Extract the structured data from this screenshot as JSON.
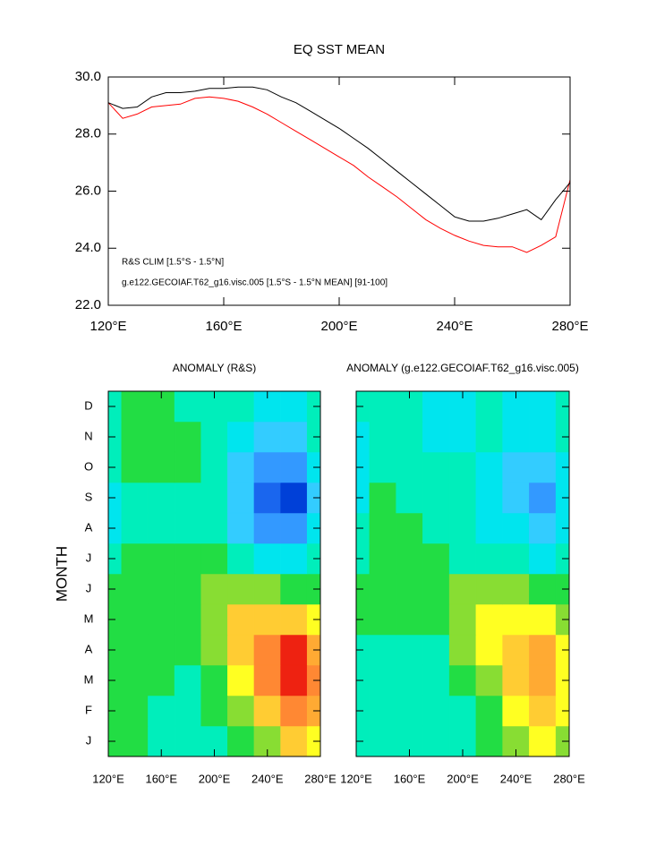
{
  "chart_data": [
    {
      "type": "line",
      "title": "EQ SST MEAN",
      "x": [
        120,
        125,
        130,
        135,
        140,
        145,
        150,
        155,
        160,
        165,
        170,
        175,
        180,
        185,
        190,
        195,
        200,
        205,
        210,
        215,
        220,
        225,
        230,
        235,
        240,
        245,
        250,
        255,
        260,
        265,
        270,
        275,
        280
      ],
      "series": [
        {
          "name": "R&S CLIM [1.5°S - 1.5°N]",
          "color": "#ff0000",
          "values": [
            29.1,
            28.55,
            28.7,
            28.95,
            29.0,
            29.05,
            29.25,
            29.3,
            29.25,
            29.15,
            28.95,
            28.7,
            28.4,
            28.1,
            27.8,
            27.5,
            27.2,
            26.9,
            26.5,
            26.15,
            25.8,
            25.4,
            25.0,
            24.7,
            24.45,
            24.25,
            24.1,
            24.05,
            24.05,
            23.85,
            24.1,
            24.4,
            26.4
          ]
        },
        {
          "name": "g.e122.GECOIAF.T62_g16.visc.005 [1.5°S - 1.5°N MEAN] [91-100]",
          "color": "#000000",
          "values": [
            29.1,
            28.9,
            28.95,
            29.3,
            29.45,
            29.45,
            29.5,
            29.6,
            29.6,
            29.65,
            29.65,
            29.55,
            29.3,
            29.1,
            28.8,
            28.5,
            28.2,
            27.85,
            27.5,
            27.1,
            26.7,
            26.3,
            25.9,
            25.5,
            25.1,
            24.95,
            24.95,
            25.05,
            25.2,
            25.35,
            25.0,
            25.7,
            26.3
          ]
        }
      ],
      "xlim": [
        120,
        280
      ],
      "xticks": [
        {
          "value": 120,
          "label": "120°E"
        },
        {
          "value": 160,
          "label": "160°E"
        },
        {
          "value": 200,
          "label": "200°E"
        },
        {
          "value": 240,
          "label": "240°E"
        },
        {
          "value": 280,
          "label": "280°E"
        }
      ],
      "ylim": [
        22,
        30
      ],
      "yticks": [
        {
          "value": 22,
          "label": "22.0"
        },
        {
          "value": 24,
          "label": "24.0"
        },
        {
          "value": 26,
          "label": "26.0"
        },
        {
          "value": 28,
          "label": "28.0"
        },
        {
          "value": 30,
          "label": "30.0"
        }
      ]
    },
    {
      "type": "contour",
      "title": "ANOMALY (R&S)",
      "ylabel": "MONTH",
      "x": [
        120,
        140,
        160,
        180,
        200,
        220,
        240,
        260,
        280
      ],
      "categories": [
        "J",
        "F",
        "M",
        "A",
        "M",
        "J",
        "J",
        "A",
        "S",
        "O",
        "N",
        "D"
      ],
      "xlim": [
        120,
        280
      ],
      "xticks": [
        {
          "value": 120,
          "label": "120°E"
        },
        {
          "value": 160,
          "label": "160°E"
        },
        {
          "value": 200,
          "label": "200°E"
        },
        {
          "value": 240,
          "label": "240°E"
        },
        {
          "value": 280,
          "label": "280°E"
        }
      ],
      "levels": [
        -2,
        -1.6,
        -1.2,
        -0.8,
        -0.4,
        0,
        0.4,
        0.8,
        1.2,
        1.6,
        2,
        2.4
      ],
      "colors": [
        "#0040d8",
        "#1a66ee",
        "#3399ff",
        "#33ccff",
        "#00e5ee",
        "#00eebb",
        "#22dd44",
        "#88dd33",
        "#ffff22",
        "#ffcc33",
        "#ffaa33",
        "#ff8833",
        "#ee2211"
      ],
      "values": [
        [
          0.2,
          0.1,
          -0.2,
          -0.3,
          -0.2,
          0.2,
          0.6,
          1.2,
          1.0
        ],
        [
          0.2,
          0.1,
          -0.1,
          -0.3,
          0.0,
          0.4,
          1.2,
          2.0,
          1.6
        ],
        [
          0.1,
          0.2,
          0.0,
          -0.2,
          0.2,
          1.0,
          2.0,
          2.6,
          2.0
        ],
        [
          0.1,
          0.3,
          0.2,
          0.0,
          0.4,
          1.2,
          2.0,
          2.4,
          1.8
        ],
        [
          0.1,
          0.3,
          0.2,
          0.2,
          0.6,
          1.2,
          1.4,
          1.2,
          0.8
        ],
        [
          0.0,
          0.2,
          0.2,
          0.3,
          0.6,
          0.6,
          0.4,
          0.2,
          0.0
        ],
        [
          -0.3,
          0.0,
          0.1,
          0.2,
          0.1,
          -0.2,
          -0.5,
          -0.6,
          -0.4
        ],
        [
          -0.6,
          -0.3,
          -0.2,
          -0.2,
          -0.4,
          -0.9,
          -1.4,
          -1.6,
          -0.8
        ],
        [
          -0.6,
          -0.2,
          -0.1,
          -0.1,
          -0.4,
          -1.2,
          -1.8,
          -2.2,
          -1.0
        ],
        [
          -0.3,
          0.0,
          0.0,
          0.0,
          -0.3,
          -1.0,
          -1.6,
          -1.6,
          -0.8
        ],
        [
          -0.2,
          0.0,
          0.1,
          0.0,
          -0.3,
          -0.6,
          -1.0,
          -0.9,
          -0.4
        ],
        [
          -0.2,
          0.0,
          0.0,
          -0.3,
          -0.4,
          -0.4,
          -0.8,
          -0.6,
          -0.3
        ]
      ]
    },
    {
      "type": "contour",
      "title": "ANOMALY (g.e122.GECOIAF.T62_g16.visc.005)",
      "x": [
        120,
        140,
        160,
        180,
        200,
        220,
        240,
        260,
        280
      ],
      "xlim": [
        120,
        280
      ],
      "xticks": [
        {
          "value": 120,
          "label": "120°E"
        },
        {
          "value": 160,
          "label": "160°E"
        },
        {
          "value": 200,
          "label": "200°E"
        },
        {
          "value": 240,
          "label": "240°E"
        },
        {
          "value": 280,
          "label": "280°E"
        }
      ],
      "levels": [
        -2,
        -1.6,
        -1.2,
        -0.8,
        -0.4,
        0,
        0.4,
        0.8,
        1.2,
        1.6,
        2,
        2.4
      ],
      "colors": [
        "#0040d8",
        "#1a66ee",
        "#3399ff",
        "#33ccff",
        "#00e5ee",
        "#00eebb",
        "#22dd44",
        "#88dd33",
        "#ffff22",
        "#ffcc33",
        "#ffaa33",
        "#ff8833",
        "#ee2211"
      ],
      "values": [
        [
          -0.2,
          -0.3,
          -0.3,
          -0.3,
          -0.2,
          0.0,
          0.4,
          0.8,
          0.6
        ],
        [
          -0.2,
          -0.3,
          -0.2,
          -0.3,
          -0.1,
          0.2,
          0.8,
          1.2,
          0.8
        ],
        [
          -0.2,
          -0.2,
          -0.2,
          -0.2,
          0.0,
          0.6,
          1.2,
          1.6,
          1.0
        ],
        [
          -0.1,
          -0.1,
          -0.1,
          -0.1,
          0.4,
          1.0,
          1.4,
          1.6,
          1.0
        ],
        [
          0.0,
          0.1,
          0.0,
          0.2,
          0.6,
          1.0,
          1.0,
          1.0,
          0.6
        ],
        [
          0.0,
          0.2,
          0.2,
          0.2,
          0.4,
          0.4,
          0.4,
          0.2,
          0.0
        ],
        [
          -0.1,
          0.2,
          0.2,
          0.0,
          -0.2,
          -0.3,
          -0.4,
          -0.5,
          -0.3
        ],
        [
          -0.4,
          0.0,
          0.0,
          -0.3,
          -0.4,
          -0.5,
          -0.8,
          -1.2,
          -0.6
        ],
        [
          -0.6,
          0.0,
          -0.1,
          -0.3,
          -0.4,
          -0.6,
          -1.2,
          -1.6,
          -0.7
        ],
        [
          -0.5,
          -0.2,
          -0.3,
          -0.4,
          -0.4,
          -0.5,
          -1.0,
          -1.2,
          -0.6
        ],
        [
          -0.5,
          -0.2,
          -0.3,
          -0.5,
          -0.5,
          -0.4,
          -0.6,
          -0.8,
          -0.4
        ],
        [
          -0.4,
          -0.2,
          -0.3,
          -0.5,
          -0.5,
          -0.4,
          -0.5,
          -0.5,
          -0.3
        ]
      ]
    }
  ]
}
